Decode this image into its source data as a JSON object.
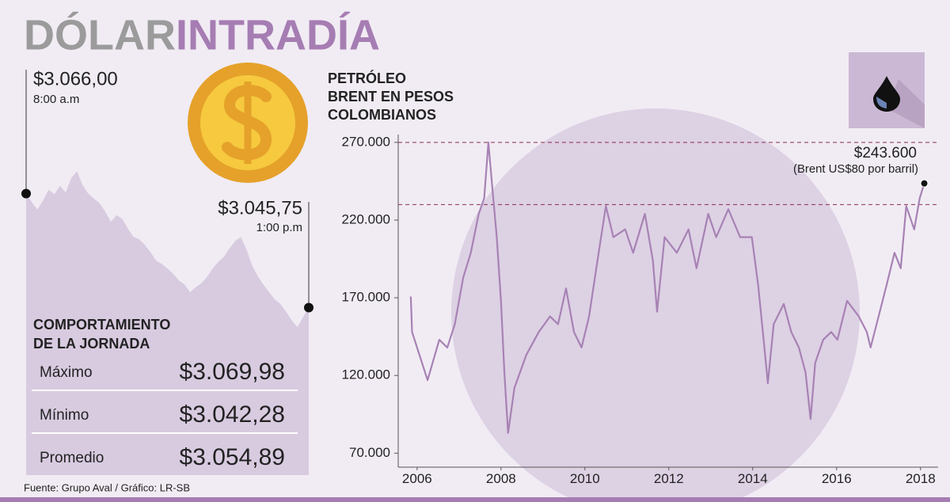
{
  "header": {
    "title_gray": "DÓLAR",
    "title_purple": "INTRADÍA"
  },
  "chart_data": [
    {
      "type": "area",
      "color": "#d8cbe0",
      "ylim": [
        3016,
        3071
      ],
      "values": [
        3066.0,
        3064.5,
        3063.2,
        3064.8,
        3066.7,
        3065.9,
        3067.4,
        3066.2,
        3068.8,
        3069.98,
        3067.5,
        3066.0,
        3065.1,
        3064.3,
        3062.8,
        3061.0,
        3062.2,
        3061.5,
        3059.8,
        3058.3,
        3057.9,
        3056.9,
        3055.6,
        3054.1,
        3053.5,
        3052.7,
        3051.8,
        3050.6,
        3049.9,
        3048.5,
        3049.4,
        3050.1,
        3051.2,
        3052.7,
        3053.9,
        3054.8,
        3056.3,
        3057.6,
        3058.3,
        3056.0,
        3053.2,
        3051.3,
        3049.8,
        3048.5,
        3047.2,
        3046.4,
        3045.0,
        3043.5,
        3042.28,
        3044.1,
        3045.75
      ],
      "start": {
        "value": 3066.0,
        "label": "$3.066,00",
        "time": "8:00 a.m"
      },
      "end": {
        "value": 3045.75,
        "label": "$3.045,75",
        "time": "1:00 p.m"
      },
      "stats_title": [
        "COMPORTAMIENTO",
        "DE LA JORNADA"
      ],
      "stats": [
        {
          "name": "Máximo",
          "value": 3069.98,
          "label": "$3.069,98"
        },
        {
          "name": "Mínimo",
          "value": 3042.28,
          "label": "$3.042,28"
        },
        {
          "name": "Promedio",
          "value": 3054.89,
          "label": "$3.054,89"
        }
      ]
    },
    {
      "type": "line",
      "color": "#a782b4",
      "title": [
        "PETRÓLEO",
        "BRENT EN PESOS",
        "COLOMBIANOS"
      ],
      "x": [
        2005.85,
        2005.88,
        2006.25,
        2006.53,
        2006.72,
        2006.9,
        2007.1,
        2007.28,
        2007.47,
        2007.6,
        2007.7,
        2007.8,
        2007.9,
        2008.0,
        2008.08,
        2008.17,
        2008.32,
        2008.6,
        2008.9,
        2009.17,
        2009.36,
        2009.55,
        2009.74,
        2009.92,
        2010.1,
        2010.3,
        2010.5,
        2010.68,
        2010.96,
        2011.15,
        2011.43,
        2011.62,
        2011.72,
        2011.9,
        2012.19,
        2012.47,
        2012.66,
        2012.94,
        2013.13,
        2013.42,
        2013.7,
        2013.98,
        2014.13,
        2014.26,
        2014.36,
        2014.5,
        2014.74,
        2014.92,
        2015.1,
        2015.26,
        2015.38,
        2015.49,
        2015.68,
        2015.87,
        2016.02,
        2016.25,
        2016.53,
        2016.72,
        2016.81,
        2017.0,
        2017.19,
        2017.38,
        2017.53,
        2017.66,
        2017.85,
        2017.98,
        2018.09
      ],
      "values": [
        170800,
        148000,
        117000,
        143000,
        138000,
        153000,
        183000,
        199000,
        224000,
        234000,
        270000,
        239000,
        209000,
        168000,
        122000,
        83000,
        112000,
        133000,
        148000,
        158000,
        153000,
        176000,
        148000,
        138000,
        158000,
        194000,
        229000,
        209000,
        214000,
        199000,
        224000,
        194000,
        161000,
        209000,
        199000,
        214000,
        189000,
        224000,
        209000,
        227000,
        209000,
        209000,
        178000,
        143000,
        115000,
        153000,
        166000,
        148000,
        138000,
        122000,
        92000,
        128000,
        143000,
        148000,
        143000,
        168000,
        158000,
        148000,
        138000,
        158000,
        178000,
        199000,
        189000,
        229000,
        214000,
        234000,
        243600
      ],
      "value_labels_last": {
        "label": "$243.600",
        "note": "(Brent US$80 por barril)"
      },
      "reference_lines": [
        270000,
        230000
      ],
      "xlim": [
        2005.55,
        2018.42
      ],
      "xticks": [
        2006,
        2008,
        2010,
        2012,
        2014,
        2016,
        2018
      ],
      "ylim": [
        61000,
        275000
      ],
      "yticks": [
        {
          "value": 70000,
          "label": "70.000"
        },
        {
          "value": 120000,
          "label": "120.000"
        },
        {
          "value": 170000,
          "label": "170.000"
        },
        {
          "value": 220000,
          "label": "220.000"
        },
        {
          "value": 270000,
          "label": "270.000"
        }
      ]
    }
  ],
  "source": "Fuente: Grupo Aval / Gráfico: LR-SB"
}
